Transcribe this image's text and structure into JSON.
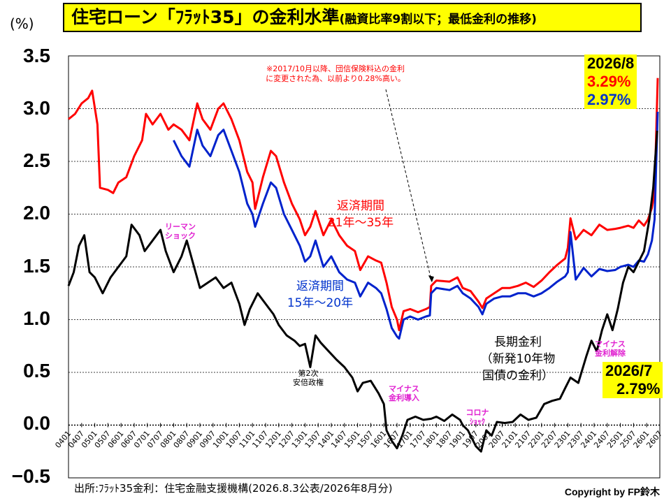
{
  "title": {
    "main": "住宅ローン「ﾌﾗｯﾄ35」の金利水準",
    "sub": "(融資比率9割以下；最低金利の推移)"
  },
  "unit_label": "(%)",
  "y_ticks": [
    "3.5",
    "3.0",
    "2.5",
    "2.0",
    "1.5",
    "1.0",
    "0.5",
    "0.0",
    "−0.5"
  ],
  "note": {
    "line1": "※2017/10月以降、団信保険料込の金利",
    "line2": "に変更された為、以前より0.28%高い。"
  },
  "labels": {
    "red_series_line1": "返済期間",
    "red_series_line2": "21年～35年",
    "blue_series_line1": "返済期間",
    "blue_series_line2": "15年～20年",
    "black_series_line1": "長期金利",
    "black_series_line2": "（新発10年物",
    "black_series_line3": "国債の金利）",
    "lehman_line1": "リーマン",
    "lehman_line2": "ショック",
    "abe_line1": "第2次",
    "abe_line2": "安倍政権",
    "negative_line1": "マイナス",
    "negative_line2": "金利導入",
    "corona_line1": "コロナ",
    "corona_line2": "ｼｮｯｸ",
    "negative_end_line1": "マイナス",
    "negative_end_line2": "金利解除"
  },
  "latest_flat": {
    "date": "2026/8",
    "red_value": "3.29%",
    "blue_value": "2.97%"
  },
  "latest_jgb": {
    "date": "2026/7",
    "value": "2.79%"
  },
  "source": "出所:ﾌﾗｯﾄ35金利：住宅金融支援機構(2026.8.3公表/2026年8月分)",
  "copyright": "Copyright by FP鈴木",
  "colors": {
    "red": "#ff0000",
    "blue": "#0022cc",
    "black": "#000000"
  },
  "chart_data": {
    "type": "line",
    "ylim": [
      -0.5,
      3.5
    ],
    "x_tick_labels": [
      "0401",
      "0407",
      "0501",
      "0507",
      "0601",
      "0607",
      "0701",
      "0707",
      "0801",
      "0807",
      "0901",
      "0907",
      "1001",
      "1007",
      "1101",
      "1107",
      "1201",
      "1207",
      "1301",
      "1307",
      "1401",
      "1407",
      "1501",
      "1507",
      "1601",
      "1607",
      "1701",
      "1707",
      "1801",
      "1807",
      "1901",
      "1907",
      "2001",
      "2007",
      "2101",
      "2107",
      "2201",
      "2207",
      "2301",
      "2307",
      "2401",
      "2407",
      "2501",
      "2507",
      "2601",
      "2607"
    ],
    "series": [
      {
        "name": "返済期間21年～35年",
        "color": "#ff0000",
        "points": [
          [
            2004.0,
            2.9
          ],
          [
            2004.25,
            2.95
          ],
          [
            2004.5,
            3.05
          ],
          [
            2004.75,
            3.1
          ],
          [
            2004.9,
            3.17
          ],
          [
            2005.1,
            2.85
          ],
          [
            2005.2,
            2.25
          ],
          [
            2005.5,
            2.23
          ],
          [
            2005.7,
            2.2
          ],
          [
            2005.9,
            2.3
          ],
          [
            2006.2,
            2.35
          ],
          [
            2006.5,
            2.55
          ],
          [
            2006.8,
            2.7
          ],
          [
            2006.95,
            2.95
          ],
          [
            2007.2,
            2.85
          ],
          [
            2007.5,
            2.95
          ],
          [
            2007.8,
            2.8
          ],
          [
            2008.0,
            2.85
          ],
          [
            2008.3,
            2.8
          ],
          [
            2008.6,
            2.7
          ],
          [
            2008.9,
            3.05
          ],
          [
            2009.1,
            2.9
          ],
          [
            2009.4,
            2.8
          ],
          [
            2009.7,
            3.0
          ],
          [
            2009.9,
            3.05
          ],
          [
            2010.2,
            2.9
          ],
          [
            2010.5,
            2.7
          ],
          [
            2010.8,
            2.4
          ],
          [
            2011.0,
            2.3
          ],
          [
            2011.1,
            2.05
          ],
          [
            2011.4,
            2.35
          ],
          [
            2011.7,
            2.6
          ],
          [
            2011.9,
            2.55
          ],
          [
            2012.2,
            2.3
          ],
          [
            2012.5,
            2.1
          ],
          [
            2012.8,
            1.95
          ],
          [
            2013.0,
            1.8
          ],
          [
            2013.2,
            1.88
          ],
          [
            2013.4,
            2.03
          ],
          [
            2013.7,
            1.8
          ],
          [
            2014.0,
            1.95
          ],
          [
            2014.3,
            1.8
          ],
          [
            2014.6,
            1.7
          ],
          [
            2014.9,
            1.65
          ],
          [
            2015.1,
            1.47
          ],
          [
            2015.4,
            1.6
          ],
          [
            2015.7,
            1.56
          ],
          [
            2015.9,
            1.54
          ],
          [
            2016.1,
            1.35
          ],
          [
            2016.3,
            1.12
          ],
          [
            2016.5,
            1.0
          ],
          [
            2016.58,
            0.9
          ],
          [
            2016.75,
            1.08
          ],
          [
            2017.0,
            1.1
          ],
          [
            2017.3,
            1.07
          ],
          [
            2017.6,
            1.1
          ],
          [
            2017.75,
            1.12
          ],
          [
            2017.8,
            1.32
          ],
          [
            2018.0,
            1.37
          ],
          [
            2018.5,
            1.36
          ],
          [
            2018.8,
            1.4
          ],
          [
            2019.0,
            1.3
          ],
          [
            2019.3,
            1.27
          ],
          [
            2019.6,
            1.17
          ],
          [
            2019.75,
            1.11
          ],
          [
            2019.9,
            1.2
          ],
          [
            2020.2,
            1.25
          ],
          [
            2020.5,
            1.3
          ],
          [
            2020.8,
            1.3
          ],
          [
            2021.1,
            1.32
          ],
          [
            2021.4,
            1.35
          ],
          [
            2021.7,
            1.31
          ],
          [
            2022.0,
            1.37
          ],
          [
            2022.3,
            1.45
          ],
          [
            2022.6,
            1.52
          ],
          [
            2022.9,
            1.58
          ],
          [
            2023.0,
            1.68
          ],
          [
            2023.1,
            1.96
          ],
          [
            2023.3,
            1.76
          ],
          [
            2023.6,
            1.85
          ],
          [
            2023.9,
            1.8
          ],
          [
            2024.2,
            1.9
          ],
          [
            2024.5,
            1.85
          ],
          [
            2024.8,
            1.86
          ],
          [
            2025.0,
            1.87
          ],
          [
            2025.3,
            1.89
          ],
          [
            2025.5,
            1.87
          ],
          [
            2025.7,
            1.94
          ],
          [
            2025.9,
            1.89
          ],
          [
            2026.05,
            1.95
          ],
          [
            2026.2,
            2.06
          ],
          [
            2026.3,
            2.2
          ],
          [
            2026.42,
            3.29
          ]
        ]
      },
      {
        "name": "返済期間15年～20年",
        "color": "#0022cc",
        "points": [
          [
            2008.0,
            2.7
          ],
          [
            2008.3,
            2.55
          ],
          [
            2008.6,
            2.45
          ],
          [
            2008.9,
            2.8
          ],
          [
            2009.1,
            2.65
          ],
          [
            2009.4,
            2.55
          ],
          [
            2009.7,
            2.75
          ],
          [
            2009.9,
            2.8
          ],
          [
            2010.2,
            2.6
          ],
          [
            2010.5,
            2.4
          ],
          [
            2010.8,
            2.1
          ],
          [
            2011.0,
            2.0
          ],
          [
            2011.1,
            1.88
          ],
          [
            2011.4,
            2.1
          ],
          [
            2011.7,
            2.3
          ],
          [
            2011.9,
            2.25
          ],
          [
            2012.2,
            2.0
          ],
          [
            2012.5,
            1.85
          ],
          [
            2012.8,
            1.7
          ],
          [
            2013.0,
            1.55
          ],
          [
            2013.2,
            1.6
          ],
          [
            2013.4,
            1.75
          ],
          [
            2013.7,
            1.5
          ],
          [
            2014.0,
            1.6
          ],
          [
            2014.3,
            1.45
          ],
          [
            2014.6,
            1.38
          ],
          [
            2014.9,
            1.35
          ],
          [
            2015.1,
            1.22
          ],
          [
            2015.4,
            1.35
          ],
          [
            2015.7,
            1.3
          ],
          [
            2015.9,
            1.25
          ],
          [
            2016.1,
            1.1
          ],
          [
            2016.3,
            0.92
          ],
          [
            2016.5,
            0.84
          ],
          [
            2016.58,
            0.82
          ],
          [
            2016.75,
            1.0
          ],
          [
            2017.0,
            1.03
          ],
          [
            2017.3,
            1.0
          ],
          [
            2017.6,
            1.03
          ],
          [
            2017.75,
            1.04
          ],
          [
            2017.8,
            1.25
          ],
          [
            2018.0,
            1.3
          ],
          [
            2018.5,
            1.28
          ],
          [
            2018.8,
            1.32
          ],
          [
            2019.0,
            1.25
          ],
          [
            2019.3,
            1.2
          ],
          [
            2019.6,
            1.12
          ],
          [
            2019.75,
            1.05
          ],
          [
            2019.9,
            1.15
          ],
          [
            2020.2,
            1.2
          ],
          [
            2020.5,
            1.22
          ],
          [
            2020.8,
            1.22
          ],
          [
            2021.1,
            1.25
          ],
          [
            2021.4,
            1.25
          ],
          [
            2021.7,
            1.22
          ],
          [
            2022.0,
            1.25
          ],
          [
            2022.3,
            1.3
          ],
          [
            2022.6,
            1.36
          ],
          [
            2022.9,
            1.41
          ],
          [
            2023.0,
            1.45
          ],
          [
            2023.1,
            1.83
          ],
          [
            2023.3,
            1.38
          ],
          [
            2023.6,
            1.49
          ],
          [
            2023.9,
            1.41
          ],
          [
            2024.2,
            1.48
          ],
          [
            2024.5,
            1.46
          ],
          [
            2024.8,
            1.47
          ],
          [
            2025.0,
            1.5
          ],
          [
            2025.3,
            1.52
          ],
          [
            2025.5,
            1.5
          ],
          [
            2025.7,
            1.56
          ],
          [
            2025.9,
            1.55
          ],
          [
            2026.05,
            1.62
          ],
          [
            2026.2,
            1.75
          ],
          [
            2026.3,
            1.95
          ],
          [
            2026.42,
            2.97
          ]
        ]
      },
      {
        "name": "長期金利（新発10年物国債の金利）",
        "color": "#000000",
        "points": [
          [
            2004.0,
            1.32
          ],
          [
            2004.2,
            1.45
          ],
          [
            2004.4,
            1.7
          ],
          [
            2004.6,
            1.8
          ],
          [
            2004.8,
            1.45
          ],
          [
            2005.0,
            1.4
          ],
          [
            2005.3,
            1.25
          ],
          [
            2005.6,
            1.4
          ],
          [
            2005.9,
            1.5
          ],
          [
            2006.2,
            1.6
          ],
          [
            2006.4,
            1.9
          ],
          [
            2006.7,
            1.8
          ],
          [
            2006.9,
            1.65
          ],
          [
            2007.2,
            1.75
          ],
          [
            2007.5,
            1.85
          ],
          [
            2007.7,
            1.65
          ],
          [
            2008.0,
            1.45
          ],
          [
            2008.3,
            1.6
          ],
          [
            2008.5,
            1.75
          ],
          [
            2008.8,
            1.48
          ],
          [
            2009.0,
            1.3
          ],
          [
            2009.3,
            1.35
          ],
          [
            2009.6,
            1.4
          ],
          [
            2009.9,
            1.3
          ],
          [
            2010.2,
            1.35
          ],
          [
            2010.5,
            1.15
          ],
          [
            2010.7,
            0.95
          ],
          [
            2010.9,
            1.1
          ],
          [
            2011.2,
            1.25
          ],
          [
            2011.5,
            1.15
          ],
          [
            2011.8,
            1.05
          ],
          [
            2012.0,
            0.95
          ],
          [
            2012.3,
            0.85
          ],
          [
            2012.6,
            0.8
          ],
          [
            2012.8,
            0.75
          ],
          [
            2013.0,
            0.77
          ],
          [
            2013.2,
            0.55
          ],
          [
            2013.4,
            0.85
          ],
          [
            2013.6,
            0.78
          ],
          [
            2013.9,
            0.7
          ],
          [
            2014.2,
            0.62
          ],
          [
            2014.5,
            0.55
          ],
          [
            2014.8,
            0.45
          ],
          [
            2015.0,
            0.32
          ],
          [
            2015.2,
            0.4
          ],
          [
            2015.5,
            0.42
          ],
          [
            2015.8,
            0.3
          ],
          [
            2016.0,
            0.2
          ],
          [
            2016.1,
            -0.05
          ],
          [
            2016.3,
            -0.15
          ],
          [
            2016.5,
            -0.22
          ],
          [
            2016.7,
            -0.1
          ],
          [
            2016.9,
            0.05
          ],
          [
            2017.2,
            0.08
          ],
          [
            2017.5,
            0.05
          ],
          [
            2017.8,
            0.06
          ],
          [
            2018.0,
            0.08
          ],
          [
            2018.3,
            0.04
          ],
          [
            2018.6,
            0.1
          ],
          [
            2018.9,
            0.05
          ],
          [
            2019.0,
            0.0
          ],
          [
            2019.2,
            -0.05
          ],
          [
            2019.5,
            -0.2
          ],
          [
            2019.7,
            -0.25
          ],
          [
            2019.9,
            -0.05
          ],
          [
            2020.1,
            -0.1
          ],
          [
            2020.3,
            0.03
          ],
          [
            2020.6,
            0.02
          ],
          [
            2020.9,
            0.03
          ],
          [
            2021.2,
            0.1
          ],
          [
            2021.5,
            0.05
          ],
          [
            2021.8,
            0.07
          ],
          [
            2022.1,
            0.2
          ],
          [
            2022.4,
            0.23
          ],
          [
            2022.7,
            0.25
          ],
          [
            2022.9,
            0.35
          ],
          [
            2023.1,
            0.45
          ],
          [
            2023.4,
            0.4
          ],
          [
            2023.7,
            0.65
          ],
          [
            2023.9,
            0.8
          ],
          [
            2024.1,
            0.7
          ],
          [
            2024.3,
            0.9
          ],
          [
            2024.5,
            1.05
          ],
          [
            2024.7,
            0.9
          ],
          [
            2024.9,
            1.1
          ],
          [
            2025.1,
            1.35
          ],
          [
            2025.3,
            1.5
          ],
          [
            2025.5,
            1.45
          ],
          [
            2025.7,
            1.55
          ],
          [
            2025.9,
            1.65
          ],
          [
            2026.1,
            1.95
          ],
          [
            2026.25,
            2.25
          ],
          [
            2026.4,
            2.79
          ]
        ]
      }
    ]
  }
}
